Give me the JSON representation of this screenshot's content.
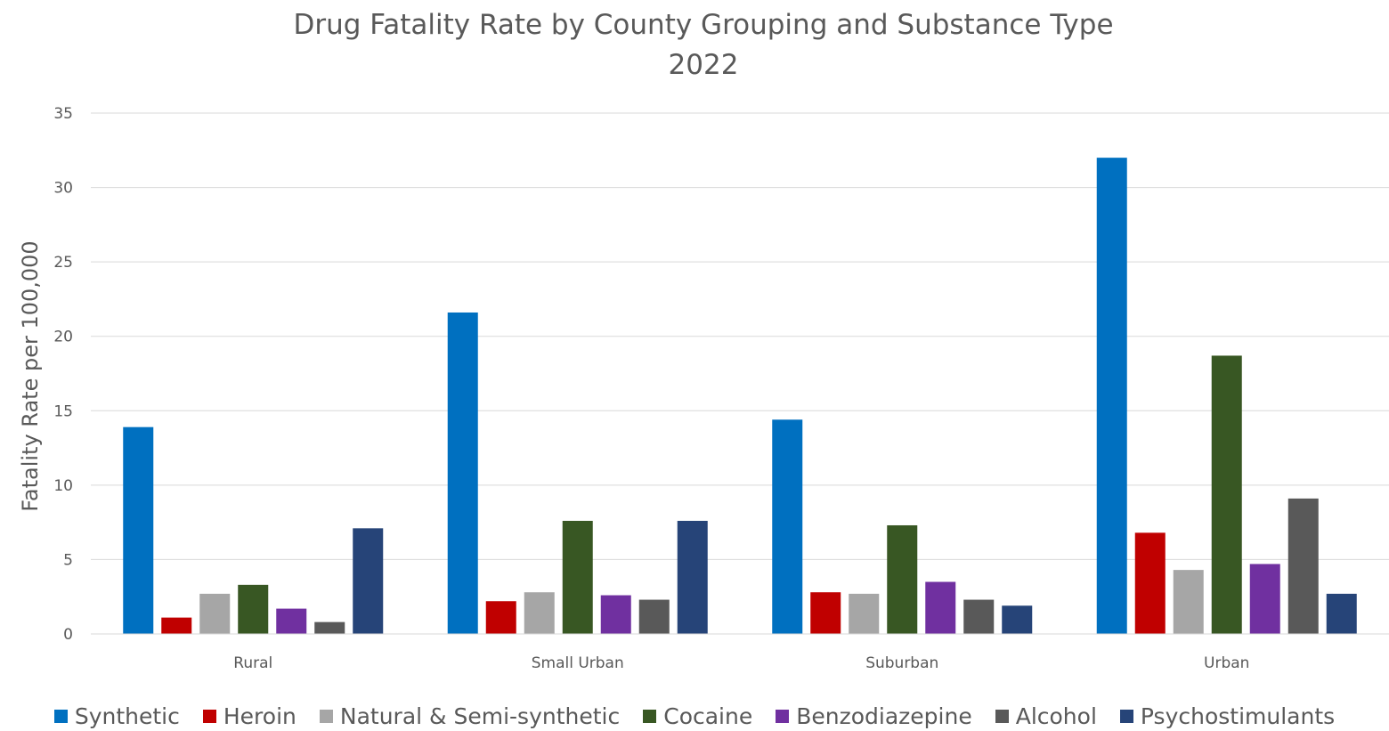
{
  "chart_data": {
    "type": "bar",
    "title": "Drug Fatality Rate by County Grouping and Substance Type",
    "subtitle": "2022",
    "xlabel": "",
    "ylabel": "Fatality Rate per 100,000",
    "ylim": [
      0,
      35
    ],
    "yticks": [
      0,
      5,
      10,
      15,
      20,
      25,
      30,
      35
    ],
    "grid": true,
    "legend_position": "bottom",
    "categories": [
      "Rural",
      "Small Urban",
      "Suburban",
      "Urban"
    ],
    "series": [
      {
        "name": "Synthetic",
        "color": "#0070C0",
        "values": [
          13.9,
          21.6,
          14.4,
          32.0
        ]
      },
      {
        "name": "Heroin",
        "color": "#C00000",
        "values": [
          1.1,
          2.2,
          2.8,
          6.8
        ]
      },
      {
        "name": "Natural & Semi-synthetic",
        "color": "#A6A6A6",
        "values": [
          2.7,
          2.8,
          2.7,
          4.3
        ]
      },
      {
        "name": "Cocaine",
        "color": "#385723",
        "values": [
          3.3,
          7.6,
          7.3,
          18.7
        ]
      },
      {
        "name": "Benzodiazepine",
        "color": "#7030A0",
        "values": [
          1.7,
          2.6,
          3.5,
          4.7
        ]
      },
      {
        "name": "Alcohol",
        "color": "#595959",
        "values": [
          0.8,
          2.3,
          2.3,
          9.1
        ]
      },
      {
        "name": "Psychostimulants",
        "color": "#264478",
        "values": [
          7.1,
          7.6,
          1.9,
          2.7
        ]
      }
    ]
  }
}
